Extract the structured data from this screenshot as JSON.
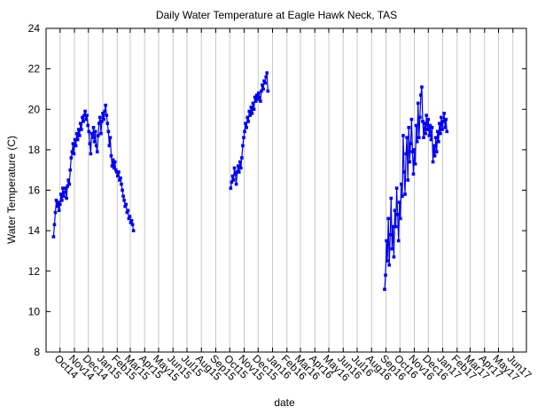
{
  "chart_data": {
    "type": "line",
    "title": "Daily Water Temperature at Eagle Hawk Neck, TAS",
    "xlabel": "date",
    "ylabel": "Water Temperature (C)",
    "xlim": [
      "2014-09-01",
      "2017-06-30"
    ],
    "ylim": [
      8,
      24
    ],
    "yticks": [
      8,
      10,
      12,
      14,
      16,
      18,
      20,
      22,
      24
    ],
    "xticks": [
      {
        "date": "2014-10-01",
        "label": "Oct14"
      },
      {
        "date": "2014-11-01",
        "label": "Nov14"
      },
      {
        "date": "2014-12-01",
        "label": "Dec14"
      },
      {
        "date": "2015-01-01",
        "label": "Jan15"
      },
      {
        "date": "2015-02-01",
        "label": "Feb15"
      },
      {
        "date": "2015-03-01",
        "label": "Mar15"
      },
      {
        "date": "2015-04-01",
        "label": "Apr15"
      },
      {
        "date": "2015-05-01",
        "label": "May15"
      },
      {
        "date": "2015-06-01",
        "label": "Jun15"
      },
      {
        "date": "2015-07-01",
        "label": "Jul15"
      },
      {
        "date": "2015-08-01",
        "label": "Aug15"
      },
      {
        "date": "2015-09-01",
        "label": "Sep15"
      },
      {
        "date": "2015-10-01",
        "label": "Oct15"
      },
      {
        "date": "2015-11-01",
        "label": "Nov15"
      },
      {
        "date": "2015-12-01",
        "label": "Dec15"
      },
      {
        "date": "2016-01-01",
        "label": "Jan16"
      },
      {
        "date": "2016-02-01",
        "label": "Feb16"
      },
      {
        "date": "2016-03-01",
        "label": "Mar16"
      },
      {
        "date": "2016-04-01",
        "label": "Apr16"
      },
      {
        "date": "2016-05-01",
        "label": "May16"
      },
      {
        "date": "2016-06-01",
        "label": "Jun16"
      },
      {
        "date": "2016-07-01",
        "label": "Jul16"
      },
      {
        "date": "2016-08-01",
        "label": "Aug16"
      },
      {
        "date": "2016-09-01",
        "label": "Sep16"
      },
      {
        "date": "2016-10-01",
        "label": "Oct16"
      },
      {
        "date": "2016-11-01",
        "label": "Nov16"
      },
      {
        "date": "2016-12-01",
        "label": "Dec16"
      },
      {
        "date": "2017-01-01",
        "label": "Jan17"
      },
      {
        "date": "2017-02-01",
        "label": "Feb17"
      },
      {
        "date": "2017-03-01",
        "label": "Mar17"
      },
      {
        "date": "2017-04-01",
        "label": "Apr17"
      },
      {
        "date": "2017-05-01",
        "label": "May17"
      },
      {
        "date": "2017-06-01",
        "label": "Jun17"
      }
    ],
    "grid": "vertical",
    "series_color": "#0000ee",
    "series": [
      {
        "values": [
          [
            "2014-09-17",
            13.7
          ],
          [
            "2014-09-19",
            14.3
          ],
          [
            "2014-09-21",
            14.9
          ],
          [
            "2014-09-23",
            15.5
          ],
          [
            "2014-09-25",
            15.2
          ],
          [
            "2014-09-27",
            15.4
          ],
          [
            "2014-09-29",
            15.0
          ],
          [
            "2014-10-01",
            15.3
          ],
          [
            "2014-10-03",
            15.8
          ],
          [
            "2014-10-05",
            15.5
          ],
          [
            "2014-10-07",
            16.1
          ],
          [
            "2014-10-09",
            15.7
          ],
          [
            "2014-10-11",
            15.9
          ],
          [
            "2014-10-13",
            16.1
          ],
          [
            "2014-10-15",
            15.6
          ],
          [
            "2014-10-17",
            16.2
          ],
          [
            "2014-10-19",
            16.5
          ],
          [
            "2014-10-21",
            16.3
          ],
          [
            "2014-10-23",
            17.0
          ],
          [
            "2014-10-25",
            17.6
          ],
          [
            "2014-10-27",
            17.9
          ],
          [
            "2014-10-29",
            18.3
          ],
          [
            "2014-10-31",
            17.8
          ],
          [
            "2014-11-02",
            18.5
          ],
          [
            "2014-11-04",
            18.2
          ],
          [
            "2014-11-06",
            18.8
          ],
          [
            "2014-11-08",
            18.5
          ],
          [
            "2014-11-10",
            19.0
          ],
          [
            "2014-11-12",
            18.7
          ],
          [
            "2014-11-14",
            19.3
          ],
          [
            "2014-11-16",
            19.0
          ],
          [
            "2014-11-18",
            19.6
          ],
          [
            "2014-11-20",
            19.4
          ],
          [
            "2014-11-22",
            19.7
          ],
          [
            "2014-11-24",
            19.9
          ],
          [
            "2014-11-26",
            19.5
          ],
          [
            "2014-11-28",
            19.7
          ],
          [
            "2014-11-30",
            19.2
          ],
          [
            "2014-12-02",
            18.9
          ],
          [
            "2014-12-04",
            18.3
          ],
          [
            "2014-12-06",
            17.8
          ],
          [
            "2014-12-08",
            18.8
          ],
          [
            "2014-12-10",
            18.6
          ],
          [
            "2014-12-12",
            19.1
          ],
          [
            "2014-12-14",
            18.4
          ],
          [
            "2014-12-16",
            18.9
          ],
          [
            "2014-12-18",
            18.2
          ],
          [
            "2014-12-20",
            17.9
          ],
          [
            "2014-12-22",
            18.7
          ],
          [
            "2014-12-24",
            19.3
          ],
          [
            "2014-12-26",
            19.6
          ],
          [
            "2014-12-28",
            18.8
          ],
          [
            "2014-12-30",
            19.4
          ],
          [
            "2015-01-01",
            19.8
          ],
          [
            "2015-01-03",
            19.5
          ],
          [
            "2015-01-05",
            19.9
          ],
          [
            "2015-01-07",
            20.2
          ],
          [
            "2015-01-09",
            19.7
          ],
          [
            "2015-01-11",
            19.3
          ],
          [
            "2015-01-13",
            18.9
          ],
          [
            "2015-01-15",
            18.2
          ],
          [
            "2015-01-17",
            18.6
          ],
          [
            "2015-01-19",
            17.7
          ],
          [
            "2015-01-21",
            17.2
          ],
          [
            "2015-01-23",
            17.5
          ],
          [
            "2015-01-25",
            17.1
          ],
          [
            "2015-01-27",
            17.4
          ],
          [
            "2015-01-29",
            17.0
          ],
          [
            "2015-01-31",
            16.9
          ],
          [
            "2015-02-02",
            16.7
          ],
          [
            "2015-02-04",
            16.9
          ],
          [
            "2015-02-06",
            16.5
          ],
          [
            "2015-02-08",
            16.6
          ],
          [
            "2015-02-10",
            16.3
          ],
          [
            "2015-02-12",
            16.0
          ],
          [
            "2015-02-14",
            15.7
          ],
          [
            "2015-02-16",
            15.5
          ],
          [
            "2015-02-18",
            15.2
          ],
          [
            "2015-02-20",
            15.3
          ],
          [
            "2015-02-22",
            14.9
          ],
          [
            "2015-02-24",
            15.0
          ],
          [
            "2015-02-26",
            14.6
          ],
          [
            "2015-02-28",
            14.7
          ],
          [
            "2015-03-02",
            14.4
          ],
          [
            "2015-03-04",
            14.5
          ],
          [
            "2015-03-06",
            14.3
          ],
          [
            "2015-03-08",
            14.0
          ]
        ]
      },
      {
        "values": [
          [
            "2015-10-03",
            16.1
          ],
          [
            "2015-10-05",
            16.4
          ],
          [
            "2015-10-07",
            16.7
          ],
          [
            "2015-10-09",
            16.5
          ],
          [
            "2015-10-11",
            17.1
          ],
          [
            "2015-10-13",
            16.8
          ],
          [
            "2015-10-15",
            16.3
          ],
          [
            "2015-10-17",
            16.9
          ],
          [
            "2015-10-19",
            17.2
          ],
          [
            "2015-10-21",
            16.9
          ],
          [
            "2015-10-23",
            17.4
          ],
          [
            "2015-10-25",
            17.1
          ],
          [
            "2015-10-27",
            17.6
          ],
          [
            "2015-10-29",
            18.2
          ],
          [
            "2015-10-31",
            18.6
          ],
          [
            "2015-11-02",
            18.9
          ],
          [
            "2015-11-04",
            19.3
          ],
          [
            "2015-11-06",
            19.1
          ],
          [
            "2015-11-08",
            19.6
          ],
          [
            "2015-11-10",
            19.4
          ],
          [
            "2015-11-12",
            19.9
          ],
          [
            "2015-11-14",
            19.7
          ],
          [
            "2015-11-16",
            20.1
          ],
          [
            "2015-11-18",
            19.8
          ],
          [
            "2015-11-20",
            20.3
          ],
          [
            "2015-11-22",
            20.0
          ],
          [
            "2015-11-24",
            20.6
          ],
          [
            "2015-11-26",
            20.4
          ],
          [
            "2015-11-28",
            20.7
          ],
          [
            "2015-11-30",
            20.5
          ],
          [
            "2015-12-02",
            20.8
          ],
          [
            "2015-12-04",
            20.6
          ],
          [
            "2015-12-06",
            20.4
          ],
          [
            "2015-12-08",
            20.9
          ],
          [
            "2015-12-10",
            21.2
          ],
          [
            "2015-12-12",
            21.0
          ],
          [
            "2015-12-14",
            21.4
          ],
          [
            "2015-12-16",
            21.3
          ],
          [
            "2015-12-18",
            21.6
          ],
          [
            "2015-12-20",
            21.8
          ],
          [
            "2015-12-22",
            20.9
          ]
        ]
      },
      {
        "values": [
          [
            "2016-08-29",
            11.1
          ],
          [
            "2016-08-31",
            11.8
          ],
          [
            "2016-09-02",
            13.5
          ],
          [
            "2016-09-04",
            12.5
          ],
          [
            "2016-09-06",
            14.6
          ],
          [
            "2016-09-08",
            12.3
          ],
          [
            "2016-09-10",
            13.8
          ],
          [
            "2016-09-12",
            15.6
          ],
          [
            "2016-09-14",
            13.1
          ],
          [
            "2016-09-16",
            14.2
          ],
          [
            "2016-09-18",
            12.7
          ],
          [
            "2016-09-20",
            15.0
          ],
          [
            "2016-09-22",
            14.2
          ],
          [
            "2016-09-24",
            16.1
          ],
          [
            "2016-09-26",
            14.8
          ],
          [
            "2016-09-28",
            13.5
          ],
          [
            "2016-09-30",
            15.4
          ],
          [
            "2016-10-02",
            14.6
          ],
          [
            "2016-10-04",
            16.3
          ],
          [
            "2016-10-06",
            15.7
          ],
          [
            "2016-10-08",
            18.7
          ],
          [
            "2016-10-10",
            16.9
          ],
          [
            "2016-10-12",
            15.8
          ],
          [
            "2016-10-14",
            17.8
          ],
          [
            "2016-10-16",
            18.6
          ],
          [
            "2016-10-18",
            16.5
          ],
          [
            "2016-10-20",
            19.1
          ],
          [
            "2016-10-22",
            17.4
          ],
          [
            "2016-10-24",
            18.3
          ],
          [
            "2016-10-26",
            19.5
          ],
          [
            "2016-10-28",
            17.9
          ],
          [
            "2016-10-30",
            16.8
          ],
          [
            "2016-11-01",
            18.0
          ],
          [
            "2016-11-03",
            17.3
          ],
          [
            "2016-11-05",
            19.2
          ],
          [
            "2016-11-07",
            18.4
          ],
          [
            "2016-11-09",
            20.3
          ],
          [
            "2016-11-11",
            18.6
          ],
          [
            "2016-11-13",
            19.6
          ],
          [
            "2016-11-15",
            20.7
          ],
          [
            "2016-11-17",
            21.1
          ],
          [
            "2016-11-19",
            19.4
          ],
          [
            "2016-11-21",
            18.6
          ],
          [
            "2016-11-23",
            19.3
          ],
          [
            "2016-11-25",
            18.8
          ],
          [
            "2016-11-27",
            19.7
          ],
          [
            "2016-11-29",
            19.0
          ],
          [
            "2016-12-01",
            19.5
          ],
          [
            "2016-12-03",
            18.7
          ],
          [
            "2016-12-05",
            19.2
          ],
          [
            "2016-12-07",
            18.5
          ],
          [
            "2016-12-09",
            19.1
          ],
          [
            "2016-12-11",
            17.4
          ],
          [
            "2016-12-13",
            18.2
          ],
          [
            "2016-12-15",
            17.7
          ],
          [
            "2016-12-17",
            18.6
          ],
          [
            "2016-12-19",
            17.9
          ],
          [
            "2016-12-21",
            18.9
          ],
          [
            "2016-12-23",
            18.4
          ],
          [
            "2016-12-25",
            19.3
          ],
          [
            "2016-12-27",
            18.8
          ],
          [
            "2016-12-29",
            19.6
          ],
          [
            "2016-12-31",
            19.0
          ],
          [
            "2017-01-02",
            19.4
          ],
          [
            "2017-01-04",
            19.8
          ],
          [
            "2017-01-06",
            19.1
          ],
          [
            "2017-01-08",
            19.5
          ],
          [
            "2017-01-10",
            18.9
          ]
        ]
      }
    ]
  }
}
